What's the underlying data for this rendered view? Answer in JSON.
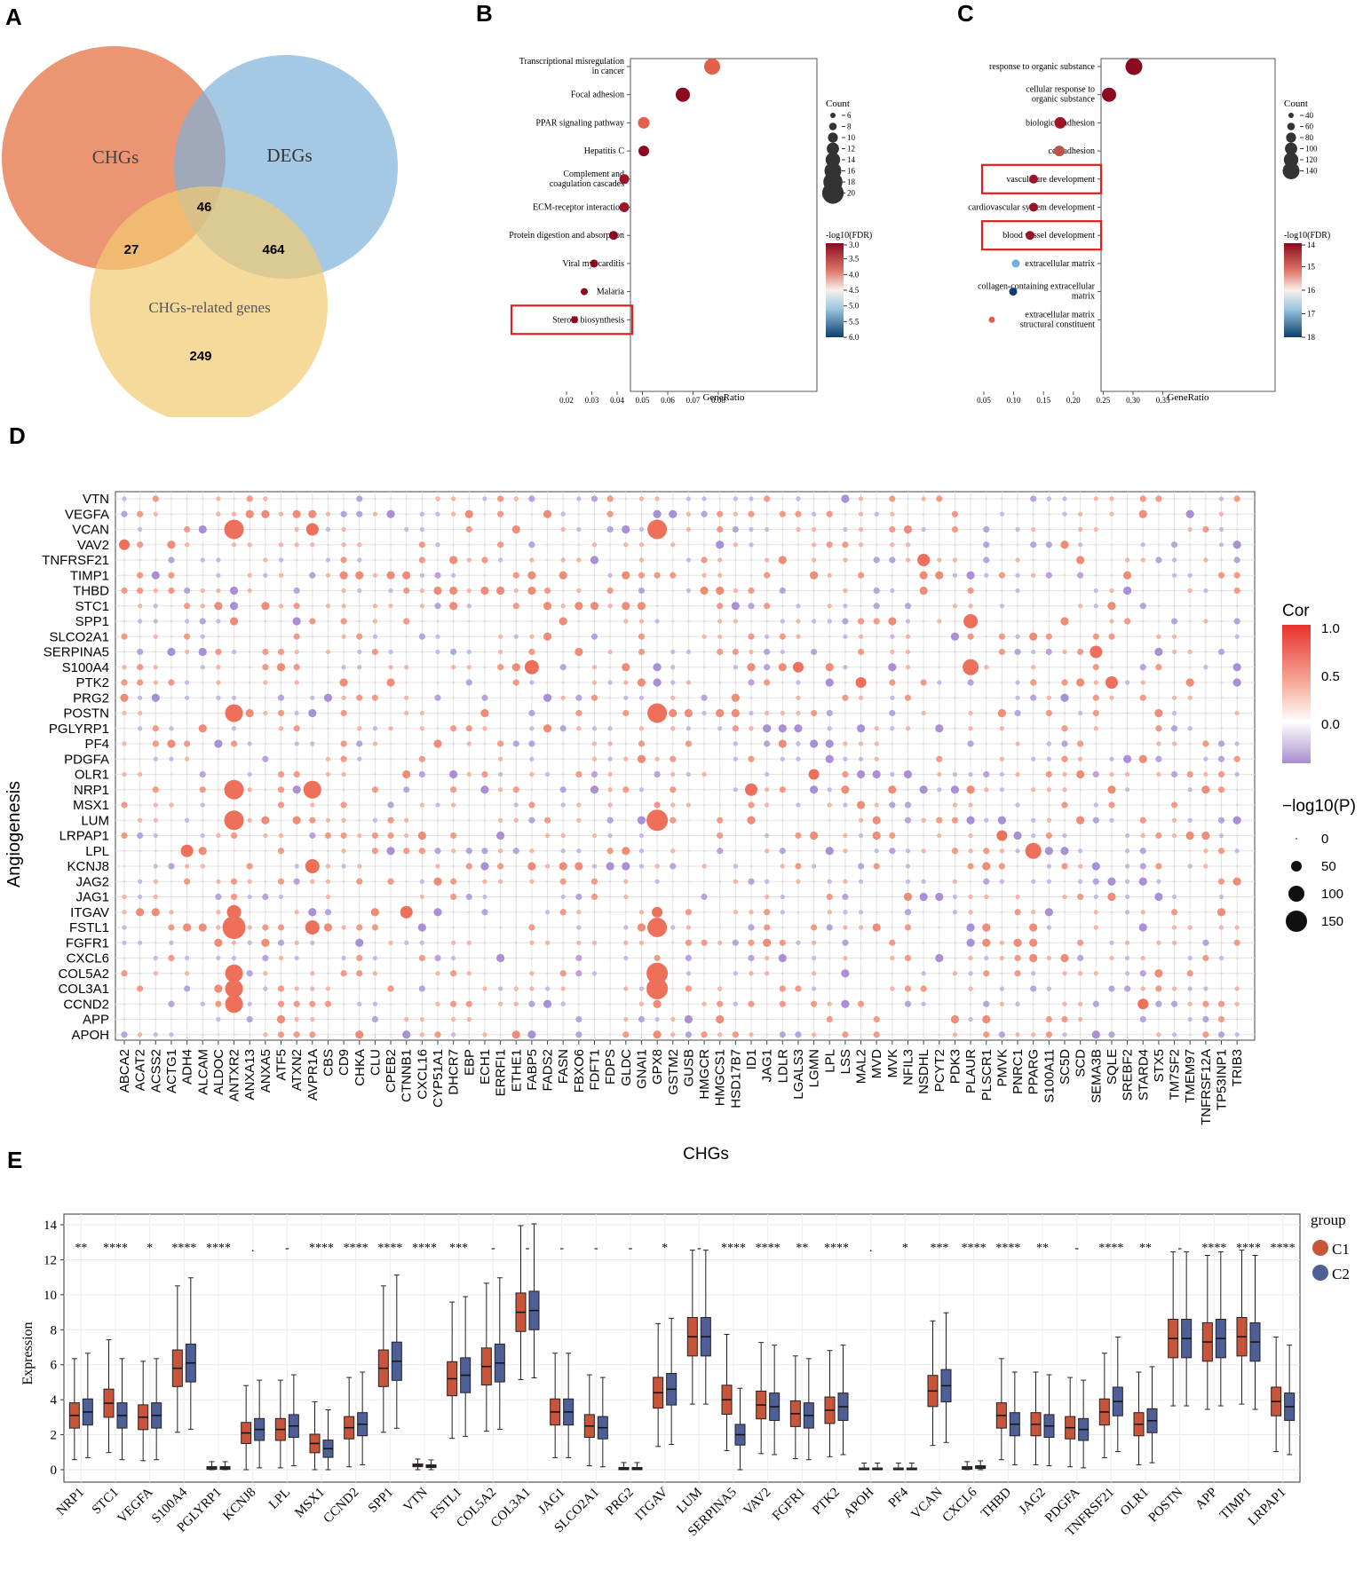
{
  "panels": {
    "A": "A",
    "B": "B",
    "C": "C",
    "D": "D",
    "E": "E"
  },
  "venn": {
    "sets": [
      "CHGs",
      "DEGs",
      "CHGs-related genes"
    ],
    "regions": {
      "chgs_related": "27",
      "all_three": "46",
      "degs_related": "464",
      "related_only": "249"
    },
    "colors": {
      "chgs": "#e8825a",
      "degs": "#7fb2d9",
      "related": "#f2cb72"
    }
  },
  "kegg": {
    "terms": [
      "Transcriptional misregulation in cancer",
      "Focal adhesion",
      "PPAR signaling pathway",
      "Hepatitis C",
      "Complement and coagulation cascades",
      "ECM-receptor interaction",
      "Protein digestion and absorption",
      "Viral myocarditis",
      "Malaria",
      "Steroid biosynthesis"
    ],
    "xlabel": "GeneRatio",
    "xticks": [
      "0.02",
      "0.03",
      "0.04",
      "0.05",
      "0.06",
      "0.07",
      "0.08"
    ],
    "highlight": "Steroid biosynthesis",
    "count_title": "Count",
    "count_ticks": [
      "6",
      "8",
      "10",
      "12",
      "14",
      "16",
      "18",
      "20"
    ],
    "fdr_title": "-log10(FDR)",
    "fdr_ticks": [
      "3.0",
      "3.5",
      "4.0",
      "4.5",
      "5.0",
      "5.5",
      "6.0"
    ]
  },
  "go": {
    "terms": [
      "response to organic substance",
      "cellular response to organic substance",
      "biological adhesion",
      "cell adhesion",
      "vasculature development",
      "cardiovascular system development",
      "blood vessel development",
      "extracellular matrix",
      "collagen-containing extracellular matrix",
      "extracellular matrix structural constituent"
    ],
    "xlabel": "GeneRatio",
    "xticks": [
      "0.05",
      "0.10",
      "0.15",
      "0.20",
      "0.25",
      "0.30",
      "0.35"
    ],
    "highlights": [
      "vasculature development",
      "blood vessel development"
    ],
    "count_title": "Count",
    "count_ticks": [
      "40",
      "60",
      "80",
      "100",
      "120",
      "140"
    ],
    "fdr_title": "-log10(FDR)",
    "fdr_ticks": [
      "14",
      "15",
      "16",
      "17",
      "18"
    ]
  },
  "dotplot": {
    "ylabel": "Angiogenesis",
    "xlabel": "CHGs",
    "rows": [
      "VTN",
      "VEGFA",
      "VCAN",
      "VAV2",
      "TNFRSF21",
      "TIMP1",
      "THBD",
      "STC1",
      "SPP1",
      "SLCO2A1",
      "SERPINA5",
      "S100A4",
      "PTK2",
      "PRG2",
      "POSTN",
      "PGLYRP1",
      "PF4",
      "PDGFA",
      "OLR1",
      "NRP1",
      "MSX1",
      "LUM",
      "LRPAP1",
      "LPL",
      "KCNJ8",
      "JAG2",
      "JAG1",
      "ITGAV",
      "FSTL1",
      "FGFR1",
      "CXCL6",
      "COL5A2",
      "COL3A1",
      "CCND2",
      "APP",
      "APOH"
    ],
    "cols": [
      "ABCA2",
      "ACAT2",
      "ACSS2",
      "ACTG1",
      "ADH4",
      "ALCAM",
      "ALDOC",
      "ANTXR2",
      "ANXA13",
      "ANXA5",
      "ATF5",
      "ATXN2",
      "AVPR1A",
      "CBS",
      "CD9",
      "CHKA",
      "CLU",
      "CPEB2",
      "CTNNB1",
      "CXCL16",
      "CYP51A1",
      "DHCR7",
      "EBP",
      "ECH1",
      "ERRFI1",
      "ETHE1",
      "FABP5",
      "FADS2",
      "FASN",
      "FBXO6",
      "FDFT1",
      "FDPS",
      "GLDC",
      "GNAI1",
      "GPX8",
      "GSTM2",
      "GUSB",
      "HMGCR",
      "HMGCS1",
      "HSD17B7",
      "ID1",
      "JAG1",
      "LDLR",
      "LGALS3",
      "LGMN",
      "LPL",
      "LSS",
      "MAL2",
      "MVD",
      "MVK",
      "NFIL3",
      "NSDHL",
      "PCYT2",
      "PDK3",
      "PLAUR",
      "PLSCR1",
      "PMVK",
      "PNRC1",
      "PPARG",
      "S100A11",
      "SC5D",
      "SCD",
      "SEMA3B",
      "SQLE",
      "SREBF2",
      "STARD4",
      "STX5",
      "TM7SF2",
      "TMEM97",
      "TNFRSF12A",
      "TP53INP1",
      "TRIB3"
    ],
    "cor_title": "Cor",
    "cor_ticks": [
      "1.0",
      "0.5",
      "0.0"
    ],
    "p_title": "−log10(P)",
    "p_ticks": [
      "0",
      "50",
      "100",
      "150"
    ]
  },
  "boxplot": {
    "ylabel": "Expression",
    "yticks": [
      "0",
      "2",
      "4",
      "6",
      "8",
      "10",
      "12",
      "14"
    ],
    "genes": [
      "NRP1",
      "STC1",
      "VEGFA",
      "S100A4",
      "PGLYRP1",
      "KCNJ8",
      "LPL",
      "MSX1",
      "CCND2",
      "SPP1",
      "VTN",
      "FSTL1",
      "COL5A2",
      "COL3A1",
      "JAG1",
      "SLCO2A1",
      "PRG2",
      "ITGAV",
      "LUM",
      "SERPINA5",
      "VAV2",
      "FGFR1",
      "PTK2",
      "APOH",
      "PF4",
      "VCAN",
      "CXCL6",
      "THBD",
      "JAG2",
      "PDGFA",
      "TNFRSF21",
      "OLR1",
      "POSTN",
      "APP",
      "TIMP1",
      "LRPAP1"
    ],
    "sig": [
      "**",
      "****",
      "*",
      "****",
      "****",
      ".",
      "-",
      "****",
      "****",
      "****",
      "****",
      "***",
      "-",
      "-",
      "-",
      "-",
      "-",
      "*",
      "-",
      "****",
      "****",
      "**",
      "****",
      ".",
      "*",
      "***",
      "****",
      "****",
      "**",
      "-",
      "****",
      "**",
      "-",
      "****",
      "****",
      "****"
    ],
    "legend_title": "group",
    "groups": [
      "C1",
      "C2"
    ],
    "colors": {
      "c1": "#c8543a",
      "c2": "#4d5f96"
    },
    "medians_c1": [
      3.1,
      3.8,
      3.0,
      5.8,
      0.1,
      2.1,
      2.3,
      1.5,
      2.4,
      5.8,
      0.25,
      5.2,
      5.9,
      9.0,
      3.3,
      2.5,
      0.05,
      4.4,
      7.6,
      4.0,
      3.7,
      3.2,
      3.4,
      0.02,
      0.02,
      4.5,
      0.1,
      3.1,
      2.6,
      2.4,
      3.3,
      2.6,
      7.5,
      7.3,
      7.6,
      3.9
    ],
    "medians_c2": [
      3.3,
      3.1,
      3.1,
      6.1,
      0.1,
      2.3,
      2.5,
      1.2,
      2.6,
      6.2,
      0.2,
      5.4,
      6.1,
      9.1,
      3.3,
      2.4,
      0.05,
      4.6,
      7.6,
      2.0,
      3.6,
      3.1,
      3.6,
      0.02,
      0.02,
      4.8,
      0.15,
      2.6,
      2.5,
      2.3,
      3.9,
      2.8,
      7.5,
      7.5,
      7.3,
      3.6
    ]
  }
}
